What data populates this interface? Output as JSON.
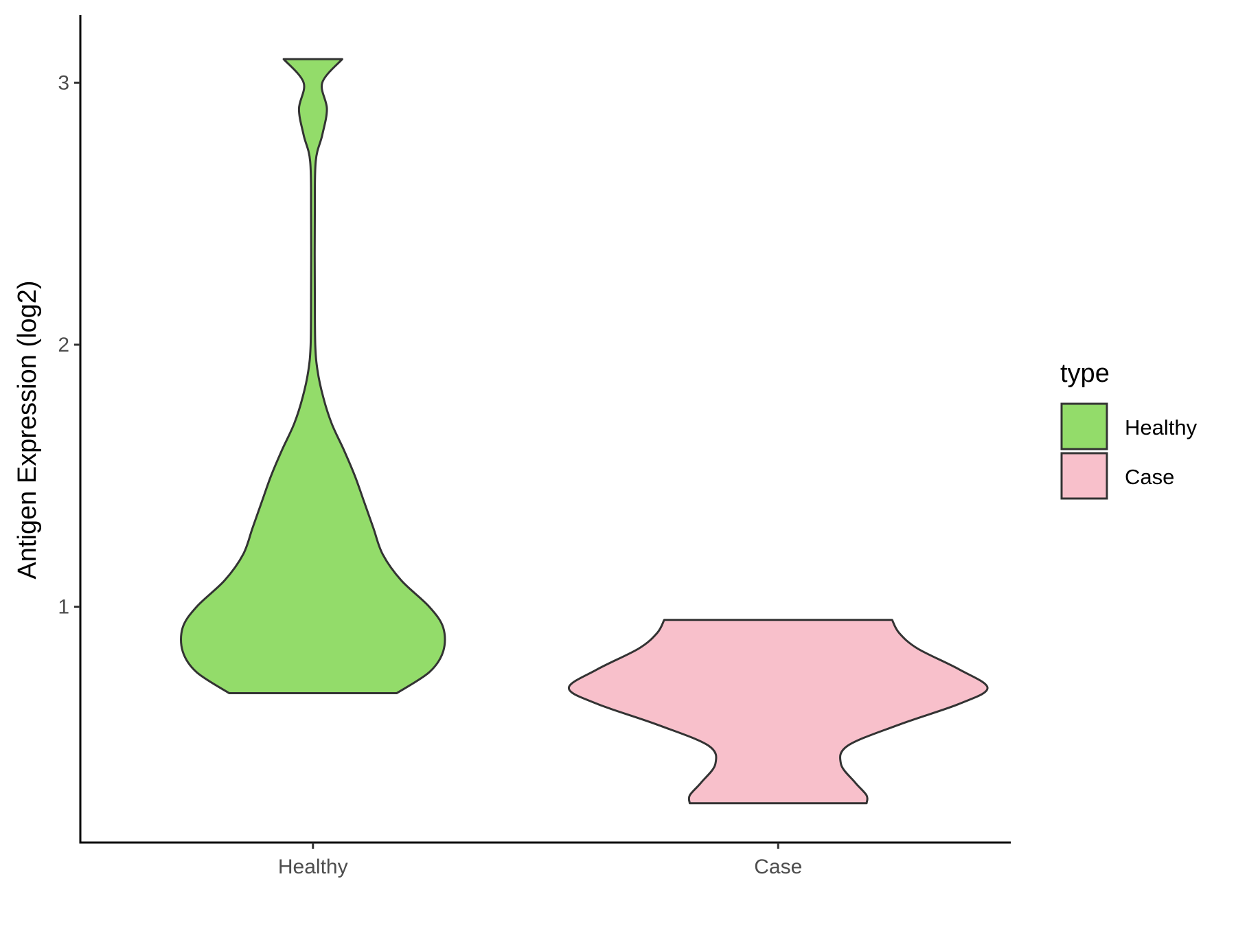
{
  "chart_data": {
    "type": "violin",
    "title": "",
    "xlabel": "",
    "ylabel": "Antigen Expression (log2)",
    "ylim": [
      0.1,
      3.25
    ],
    "yticks": [
      1,
      2,
      3
    ],
    "grid": false,
    "categories": [
      "Healthy",
      "Case"
    ],
    "legend": {
      "title": "type",
      "placement": "right",
      "entries": [
        {
          "label": "Healthy",
          "color": "#93dc6a"
        },
        {
          "label": "Case",
          "color": "#f8c0cb"
        }
      ]
    },
    "series": [
      {
        "category": "Healthy",
        "color": "#93dc6a",
        "min": 0.67,
        "max": 3.09,
        "half_widths": [
          [
            0.67,
            0.18
          ],
          [
            0.75,
            0.25
          ],
          [
            0.83,
            0.28
          ],
          [
            0.92,
            0.28
          ],
          [
            1.0,
            0.25
          ],
          [
            1.1,
            0.19
          ],
          [
            1.2,
            0.15
          ],
          [
            1.3,
            0.13
          ],
          [
            1.4,
            0.11
          ],
          [
            1.5,
            0.09
          ],
          [
            1.6,
            0.066
          ],
          [
            1.7,
            0.04
          ],
          [
            1.8,
            0.022
          ],
          [
            1.9,
            0.01
          ],
          [
            2.0,
            0.005
          ],
          [
            2.2,
            0.004
          ],
          [
            2.5,
            0.004
          ],
          [
            2.7,
            0.006
          ],
          [
            2.8,
            0.02
          ],
          [
            2.9,
            0.03
          ],
          [
            3.0,
            0.02
          ],
          [
            3.09,
            0.063
          ]
        ]
      },
      {
        "category": "Case",
        "color": "#f8c0cb",
        "min": 0.25,
        "max": 0.95,
        "half_widths": [
          [
            0.25,
            0.19
          ],
          [
            0.28,
            0.19
          ],
          [
            0.33,
            0.165
          ],
          [
            0.4,
            0.135
          ],
          [
            0.47,
            0.15
          ],
          [
            0.55,
            0.26
          ],
          [
            0.63,
            0.39
          ],
          [
            0.69,
            0.45
          ],
          [
            0.76,
            0.39
          ],
          [
            0.84,
            0.3
          ],
          [
            0.9,
            0.26
          ],
          [
            0.95,
            0.245
          ]
        ]
      }
    ]
  }
}
